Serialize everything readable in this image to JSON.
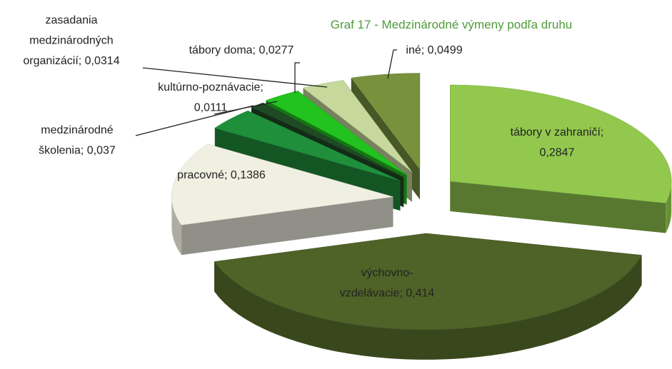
{
  "chart_data": {
    "type": "pie3d",
    "title": "Graf  17 - Medzinárodné výmeny podľa druhu",
    "values": [
      0.2847,
      0.414,
      0.1386,
      0.037,
      0.0111,
      0.0277,
      0.0314,
      0.0499
    ],
    "value_labels": [
      [
        "tábory v zahraničí;",
        "0,2847"
      ],
      [
        "výchovno-",
        "vzdelávacie; 0,414"
      ],
      [
        "pracovné; 0,1386"
      ],
      [
        "medzinárodné",
        "školenia; 0,037"
      ],
      [
        "kultúrno-poznávacie;",
        "0,0111"
      ],
      [
        "tábory doma; 0,0277"
      ],
      [
        "zasadania",
        "medzinárodných",
        "organizácií; 0,0314"
      ],
      [
        "iné; 0,0499"
      ]
    ],
    "colors": [
      "#92c84e",
      "#4f6228",
      "#f0f0e2",
      "#1f8f3c",
      "#1f4a24",
      "#22c31e",
      "#c6d89c",
      "#77913d"
    ]
  }
}
